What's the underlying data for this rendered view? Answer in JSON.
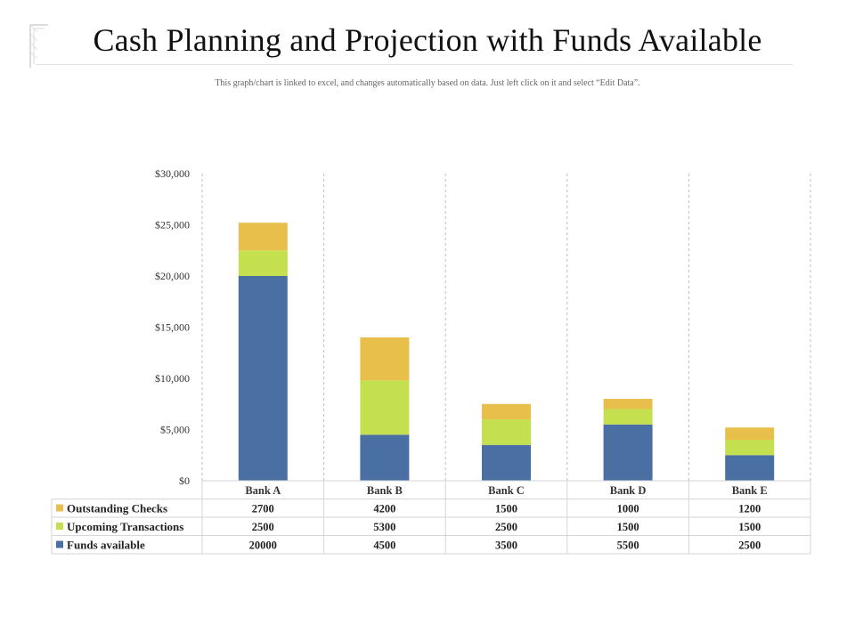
{
  "title": "Cash Planning and Projection with Funds Available",
  "subtitle": "This graph/chart is linked to excel,  and changes automatically based on data. Just left click on it and select “Edit Data”.",
  "chart_data": {
    "type": "bar",
    "stacked": true,
    "categories": [
      "Bank A",
      "Bank B",
      "Bank C",
      "Bank D",
      "Bank E"
    ],
    "series": [
      {
        "name": "Funds available",
        "color": "#4a6fa2",
        "values": [
          20000,
          4500,
          3500,
          5500,
          2500
        ]
      },
      {
        "name": "Upcoming Transactions",
        "color": "#c5e04f",
        "values": [
          2500,
          5300,
          2500,
          1500,
          1500
        ]
      },
      {
        "name": "Outstanding Checks",
        "color": "#e8bf4a",
        "values": [
          2700,
          4200,
          1500,
          1000,
          1200
        ]
      }
    ],
    "table_order": [
      "Outstanding Checks",
      "Upcoming Transactions",
      "Funds available"
    ],
    "ylim": [
      0,
      30000
    ],
    "yticks": [
      0,
      5000,
      10000,
      15000,
      20000,
      25000,
      30000
    ],
    "ytick_labels": [
      "$0",
      "$5,000",
      "$10,000",
      "$15,000",
      "$20,000",
      "$25,000",
      "$30,000"
    ],
    "xlabel": "",
    "ylabel": "",
    "grid": "vertical dashed category separators",
    "data_table": true
  }
}
